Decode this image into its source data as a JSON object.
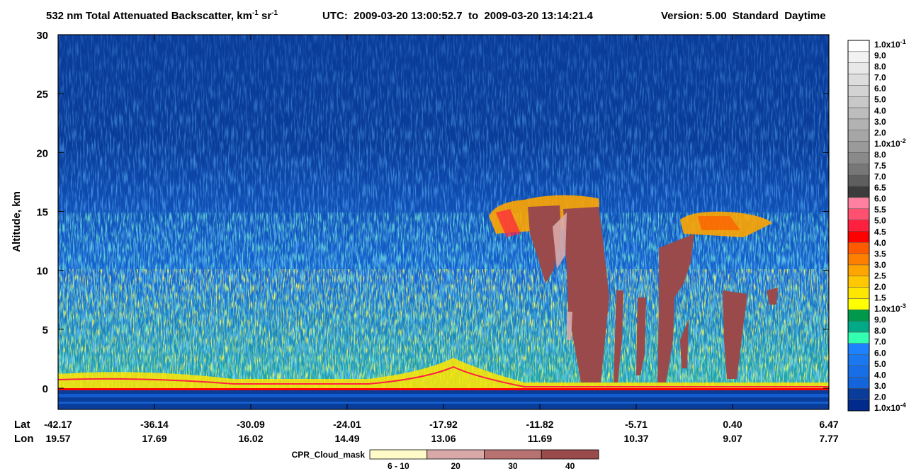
{
  "chart_data": {
    "type": "curtain",
    "title_parts": [
      "532 nm Total Attenuated Backscatter, km",
      "-1",
      " sr",
      "-1"
    ],
    "utc": "UTC:  2009-03-20 13:00:52.7  to  2009-03-20 13:14:21.4",
    "version": "Version: 5.00  Standard  Daytime",
    "y_label": "Altitude, km",
    "ylim": [
      -1.8,
      30
    ],
    "yticks": [
      0,
      5,
      10,
      15,
      20,
      25,
      30
    ],
    "lat_label": "Lat",
    "lon_label": "Lon",
    "lat": [
      "-42.17",
      "-36.14",
      "-30.09",
      "-24.01",
      "-17.92",
      "-11.82",
      "-5.71",
      "0.40",
      "6.47"
    ],
    "lon": [
      "19.57",
      "17.69",
      "16.02",
      "14.49",
      "13.06",
      "11.69",
      "10.37",
      "9.07",
      "7.77"
    ],
    "colorbar": {
      "labels": [
        {
          "text": "1.0x10",
          "exp": "-1"
        },
        "9.0",
        "8.0",
        "7.0",
        "6.0",
        "5.0",
        "4.0",
        "3.0",
        "2.0",
        {
          "text": "1.0x10",
          "exp": "-2"
        },
        "8.0",
        "7.5",
        "7.0",
        "6.5",
        "6.0",
        "5.5",
        "5.0",
        "4.5",
        "4.0",
        "3.5",
        "3.0",
        "2.5",
        "2.0",
        "1.5",
        {
          "text": "1.0x10",
          "exp": "-3"
        },
        "9.0",
        "8.0",
        "7.0",
        "6.0",
        "5.0",
        "4.0",
        "3.0",
        "2.0",
        {
          "text": "1.0x10",
          "exp": "-4"
        }
      ],
      "colors": [
        "#ffffff",
        "#f2f2f2",
        "#e8e8e8",
        "#dddddd",
        "#d3d3d3",
        "#c8c8c8",
        "#bdbdbd",
        "#b2b2b2",
        "#a6a6a6",
        "#9a9a9a",
        "#8a8a8a",
        "#777777",
        "#5e5e5e",
        "#3c3c3c",
        "#ff80a0",
        "#ff5070",
        "#ff2040",
        "#ff0000",
        "#ff5a00",
        "#ff8000",
        "#ffa500",
        "#ffc800",
        "#ffe600",
        "#ffff00",
        "#00994c",
        "#00aa88",
        "#33ffb0",
        "#1e82ff",
        "#1a78f0",
        "#186ee6",
        "#1464dc",
        "#0a3c9a",
        "#002a8c"
      ]
    },
    "cloud_mask": {
      "title": "CPR_Cloud_mask",
      "labels": [
        "6 - 10",
        "20",
        "30",
        "40"
      ],
      "colors": [
        "#fffbc8",
        "#d9a8a8",
        "#b87272",
        "#9a4a4a"
      ]
    }
  }
}
